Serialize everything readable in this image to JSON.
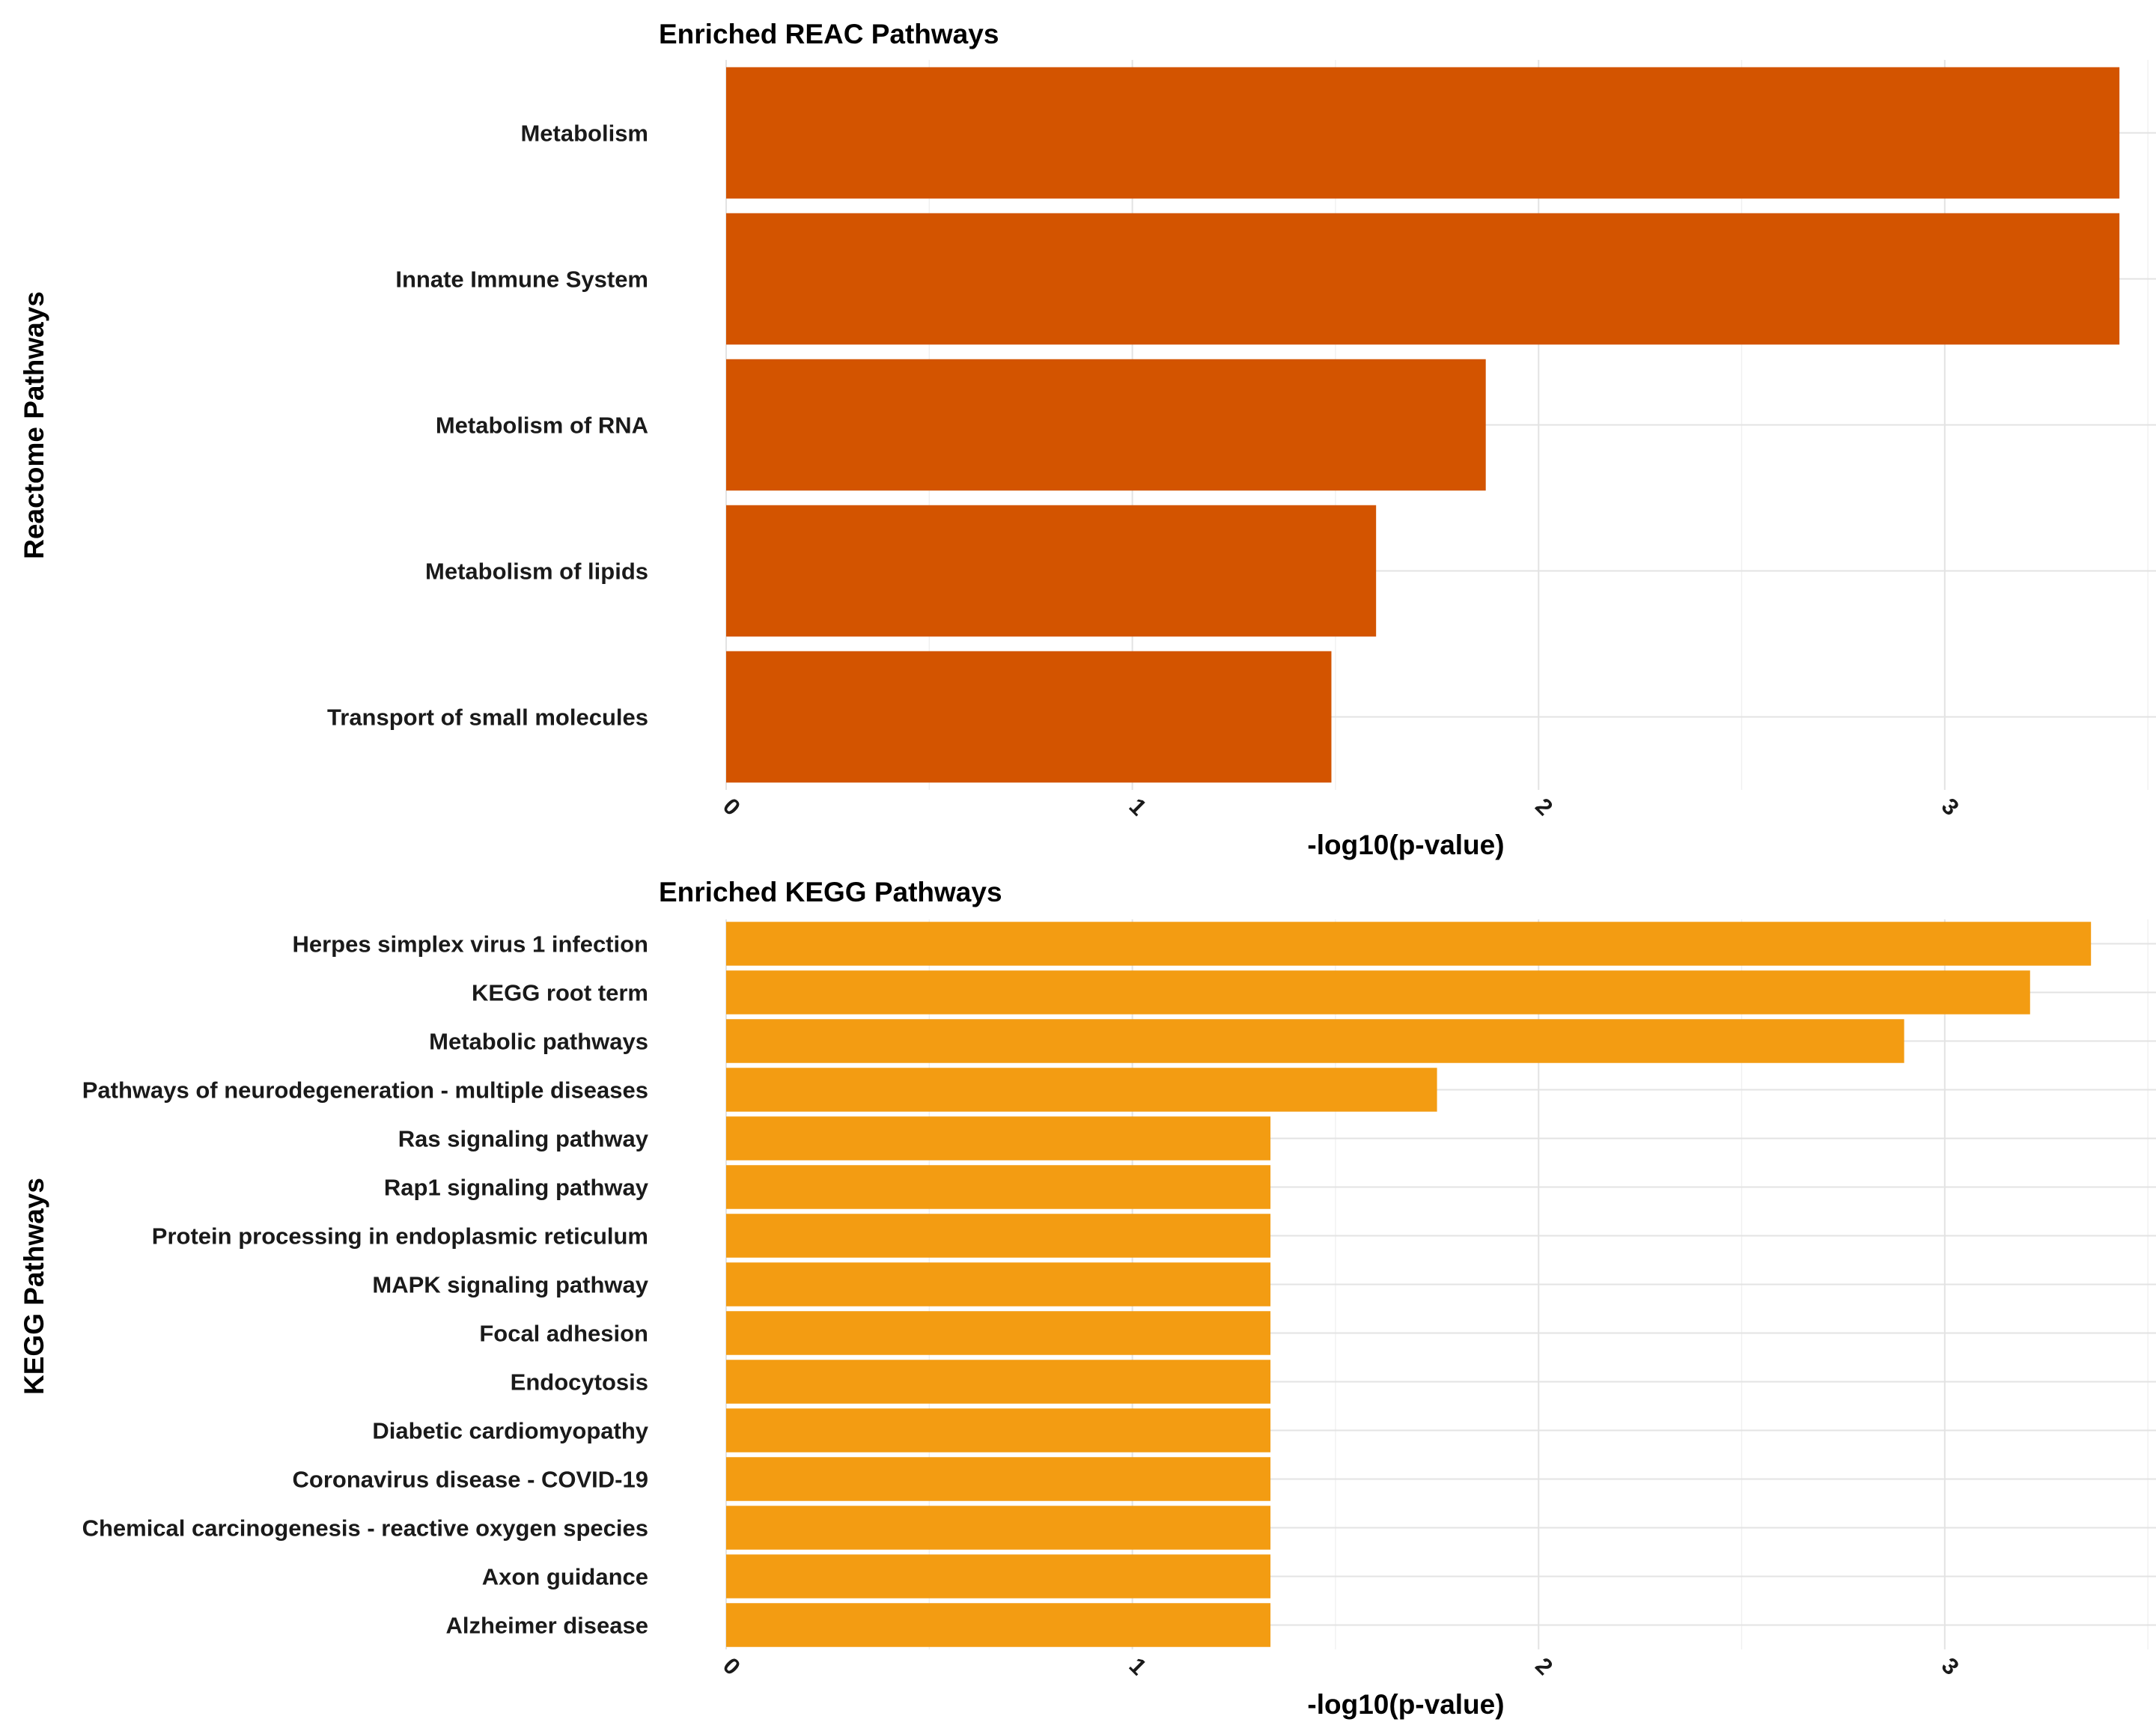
{
  "chart_data": [
    {
      "type": "bar",
      "orientation": "horizontal",
      "title": "Enriched REAC Pathways",
      "xlabel": "-log10(p-value)",
      "ylabel": "Reactome Pathways",
      "color": "#d35400",
      "xlim": [
        0,
        3.52
      ],
      "xticks": [
        "0",
        "1",
        "2",
        "3"
      ],
      "categories": [
        "Metabolism",
        "Innate Immune System",
        "Metabolism of RNA",
        "Metabolism of lipids",
        "Transport of small molecules"
      ],
      "values": [
        3.43,
        3.43,
        1.87,
        1.6,
        1.49
      ],
      "grid": true,
      "legend": "none"
    },
    {
      "type": "bar",
      "orientation": "horizontal",
      "title": "Enriched KEGG Pathways",
      "xlabel": "-log10(p-value)",
      "ylabel": "KEGG Pathways",
      "color": "#f39c12",
      "xlim": [
        0,
        3.52
      ],
      "xticks": [
        "0",
        "1",
        "2",
        "3"
      ],
      "categories": [
        "Herpes simplex virus 1 infection",
        "KEGG root term",
        "Metabolic pathways",
        "Pathways of neurodegeneration - multiple diseases",
        "Ras signaling pathway",
        "Rap1 signaling pathway",
        "Protein processing in endoplasmic reticulum",
        "MAPK signaling pathway",
        "Focal adhesion",
        "Endocytosis",
        "Diabetic cardiomyopathy",
        "Coronavirus disease - COVID-19",
        "Chemical carcinogenesis - reactive oxygen species",
        "Axon guidance",
        "Alzheimer disease"
      ],
      "values": [
        3.36,
        3.21,
        2.9,
        1.75,
        1.34,
        1.34,
        1.34,
        1.34,
        1.34,
        1.34,
        1.34,
        1.34,
        1.34,
        1.34,
        1.34
      ],
      "grid": true,
      "legend": "none"
    }
  ]
}
